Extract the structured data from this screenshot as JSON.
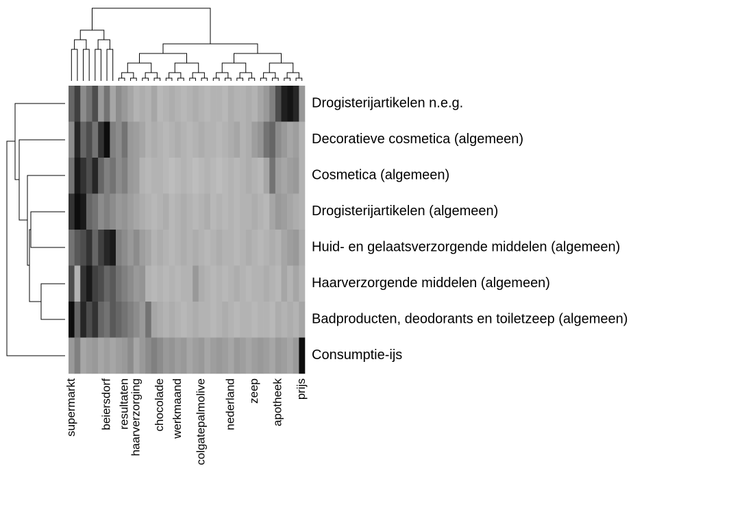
{
  "chart_data": {
    "type": "heatmap",
    "categories": [
      "supermarkt",
      null,
      null,
      null,
      null,
      null,
      "beiersdorf",
      null,
      null,
      "resultaten",
      null,
      "haarverzorging",
      null,
      null,
      null,
      "chocolade",
      null,
      null,
      "werkmaand",
      null,
      null,
      null,
      "colgatepalmolive",
      null,
      null,
      null,
      null,
      "nederland",
      null,
      null,
      null,
      "zeep",
      null,
      null,
      null,
      "apotheek",
      null,
      null,
      null,
      "prijs"
    ],
    "clim": [
      0,
      100
    ],
    "series": [
      {
        "name": "Drogisterijartikelen  n.e.g.",
        "values": [
          60,
          75,
          45,
          55,
          70,
          40,
          55,
          35,
          45,
          40,
          35,
          30,
          32,
          30,
          35,
          28,
          30,
          32,
          30,
          28,
          30,
          32,
          30,
          28,
          30,
          30,
          28,
          32,
          30,
          30,
          32,
          30,
          35,
          40,
          50,
          70,
          88,
          92,
          85,
          40
        ]
      },
      {
        "name": "Decoratieve cosmetica (algemeen)",
        "values": [
          45,
          85,
          60,
          70,
          55,
          80,
          95,
          50,
          45,
          55,
          40,
          38,
          35,
          30,
          32,
          30,
          28,
          30,
          32,
          30,
          28,
          30,
          32,
          30,
          30,
          28,
          30,
          32,
          35,
          30,
          32,
          38,
          42,
          55,
          60,
          45,
          40,
          35,
          38,
          30
        ]
      },
      {
        "name": "Cosmetica (algemeen)",
        "values": [
          55,
          90,
          80,
          70,
          85,
          60,
          50,
          55,
          45,
          50,
          40,
          38,
          30,
          28,
          30,
          30,
          28,
          26,
          28,
          30,
          28,
          26,
          28,
          30,
          28,
          26,
          28,
          30,
          28,
          30,
          32,
          30,
          28,
          35,
          55,
          38,
          35,
          38,
          40,
          30
        ]
      },
      {
        "name": "Drogisterijartikelen (algemeen)",
        "values": [
          80,
          95,
          90,
          60,
          55,
          45,
          50,
          45,
          40,
          42,
          38,
          35,
          32,
          30,
          28,
          30,
          32,
          28,
          30,
          32,
          30,
          28,
          30,
          32,
          28,
          30,
          28,
          30,
          28,
          30,
          30,
          32,
          30,
          28,
          35,
          40,
          38,
          35,
          32,
          30
        ]
      },
      {
        "name": "Huid- en gelaatsverzorgende middelen (algemeen)",
        "values": [
          55,
          65,
          70,
          80,
          60,
          75,
          85,
          90,
          50,
          45,
          40,
          45,
          38,
          35,
          30,
          32,
          30,
          28,
          30,
          32,
          30,
          32,
          30,
          28,
          30,
          32,
          30,
          30,
          28,
          30,
          32,
          30,
          28,
          30,
          32,
          30,
          35,
          38,
          40,
          32
        ]
      },
      {
        "name": "Haarverzorgende middelen (algemeen)",
        "values": [
          70,
          30,
          80,
          90,
          75,
          70,
          60,
          65,
          55,
          50,
          45,
          40,
          42,
          30,
          28,
          30,
          28,
          30,
          28,
          30,
          30,
          40,
          32,
          30,
          28,
          30,
          28,
          30,
          32,
          30,
          28,
          30,
          30,
          32,
          30,
          28,
          35,
          30,
          35,
          30
        ]
      },
      {
        "name": "Badproducten, deodorants en toiletzeep (algemeen)",
        "values": [
          95,
          60,
          85,
          70,
          80,
          60,
          55,
          65,
          60,
          55,
          50,
          45,
          40,
          55,
          35,
          32,
          30,
          32,
          30,
          28,
          30,
          32,
          30,
          30,
          28,
          30,
          32,
          30,
          28,
          30,
          30,
          28,
          30,
          30,
          28,
          32,
          30,
          32,
          30,
          35
        ]
      },
      {
        "name": "Consumptie-ijs",
        "values": [
          40,
          50,
          35,
          38,
          40,
          35,
          38,
          35,
          38,
          40,
          45,
          35,
          40,
          45,
          50,
          45,
          40,
          42,
          38,
          40,
          35,
          38,
          40,
          35,
          38,
          40,
          38,
          35,
          40,
          38,
          35,
          38,
          40,
          38,
          35,
          40,
          38,
          35,
          40,
          95
        ]
      }
    ]
  }
}
